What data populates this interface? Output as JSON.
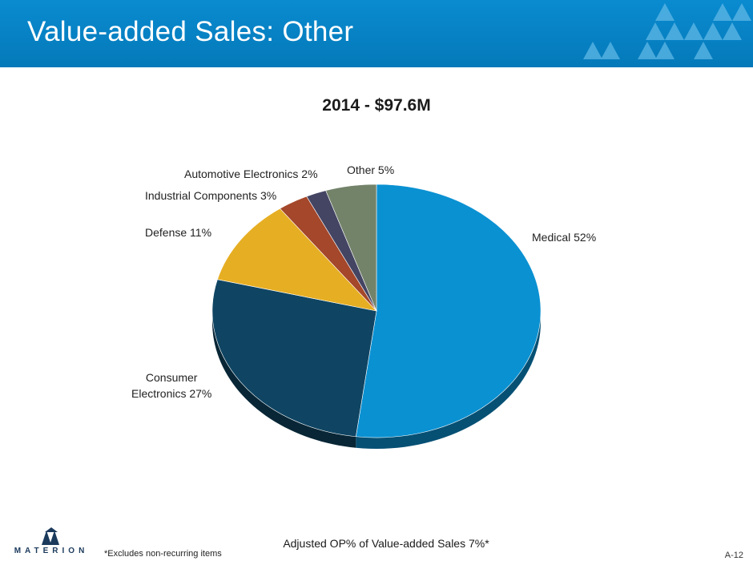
{
  "slide": {
    "title": "Value-added Sales:  Other",
    "footnote_center": "Adjusted OP% of Value-added Sales 7%*",
    "footnote_left": "*Excludes non-recurring items",
    "page_number": "A-12",
    "logo_text": "MATERION"
  },
  "colors": {
    "header": "#0581c4",
    "medical": "#0a91d2",
    "consumer": "#0f4563",
    "defense": "#e6ae23",
    "industrial": "#a4472a",
    "automotive": "#444463",
    "other": "#73836a"
  },
  "chart_data": {
    "type": "pie",
    "title": "2014 - $97.6M",
    "total": "$97.6M",
    "year": "2014",
    "slices": [
      {
        "key": "medical",
        "name": "Medical",
        "value": 52,
        "label": "Medical 52%"
      },
      {
        "key": "consumer",
        "name": "Consumer Electronics",
        "value": 27,
        "label_line1": "Consumer",
        "label_line2": "Electronics 27%"
      },
      {
        "key": "defense",
        "name": "Defense",
        "value": 11,
        "label": "Defense 11%"
      },
      {
        "key": "industrial",
        "name": "Industrial Components",
        "value": 3,
        "label": "Industrial Components 3%"
      },
      {
        "key": "automotive",
        "name": "Automotive Electronics",
        "value": 2,
        "label": "Automotive Electronics 2%"
      },
      {
        "key": "other",
        "name": "Other",
        "value": 5,
        "label": "Other 5%"
      }
    ]
  }
}
